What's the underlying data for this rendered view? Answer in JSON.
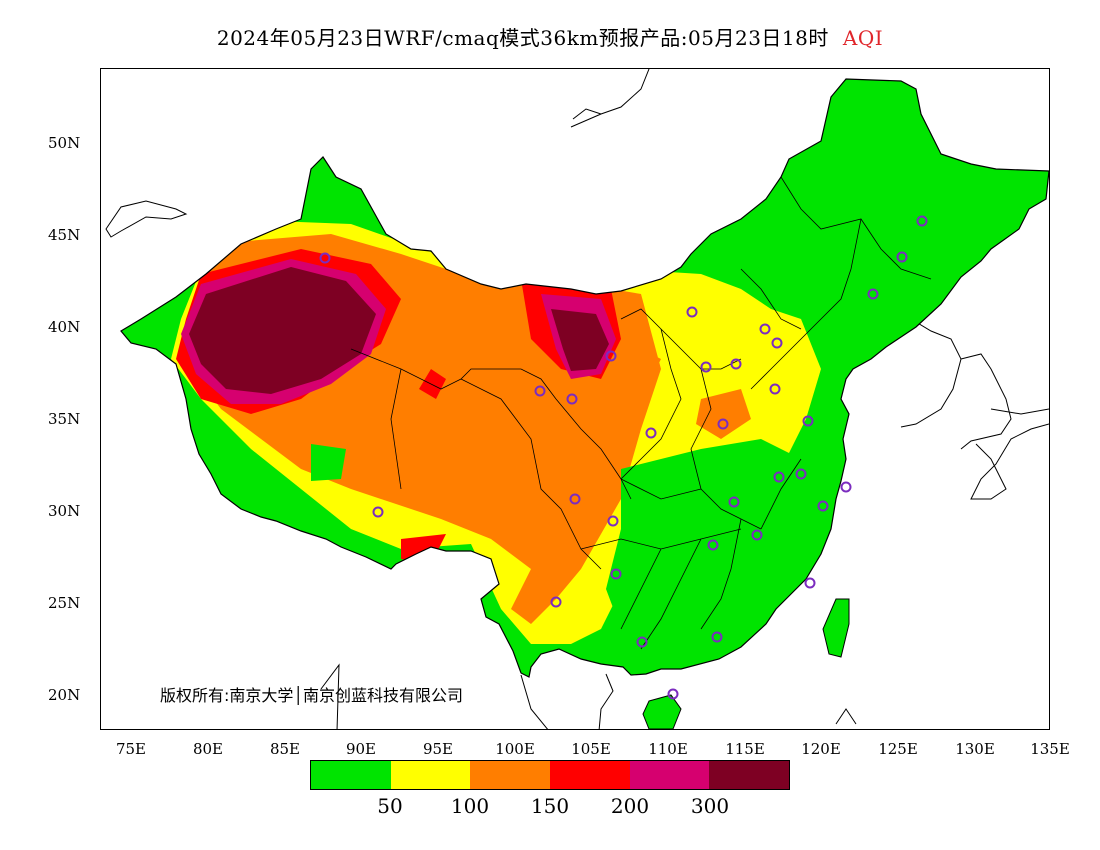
{
  "title": {
    "text": "2024年05月23日WRF/cmaq模式36km预报产品:05月23日18时",
    "variable": "AQI"
  },
  "axes": {
    "lat_labels": [
      "50N",
      "45N",
      "40N",
      "35N",
      "30N",
      "25N",
      "20N"
    ],
    "lat_values": [
      50,
      45,
      40,
      35,
      30,
      25,
      20
    ],
    "lon_labels": [
      "75E",
      "80E",
      "85E",
      "90E",
      "95E",
      "100E",
      "105E",
      "110E",
      "115E",
      "120E",
      "125E",
      "130E",
      "135E"
    ],
    "lon_values": [
      75,
      80,
      85,
      90,
      95,
      100,
      105,
      110,
      115,
      120,
      125,
      130,
      135
    ]
  },
  "copyright": "版权所有:南京大学│南京创蓝科技有限公司",
  "legend": {
    "colors": [
      "#00e400",
      "#ffff00",
      "#ff7e00",
      "#ff0000",
      "#d6006f",
      "#7e0023"
    ],
    "tick_labels": [
      "50",
      "100",
      "150",
      "200",
      "300"
    ],
    "tick_values": [
      50,
      100,
      150,
      200,
      300
    ]
  },
  "colors": {
    "good": "#00e400",
    "moderate": "#ffff00",
    "sensitive": "#ff7e00",
    "unhealthy": "#ff0000",
    "very_unhealthy": "#d6006f",
    "hazardous": "#7e0023",
    "station_marker": "#7b2cbf"
  },
  "map_extent": {
    "lon_min": 73,
    "lon_max": 135,
    "lat_min": 18,
    "lat_max": 54
  }
}
